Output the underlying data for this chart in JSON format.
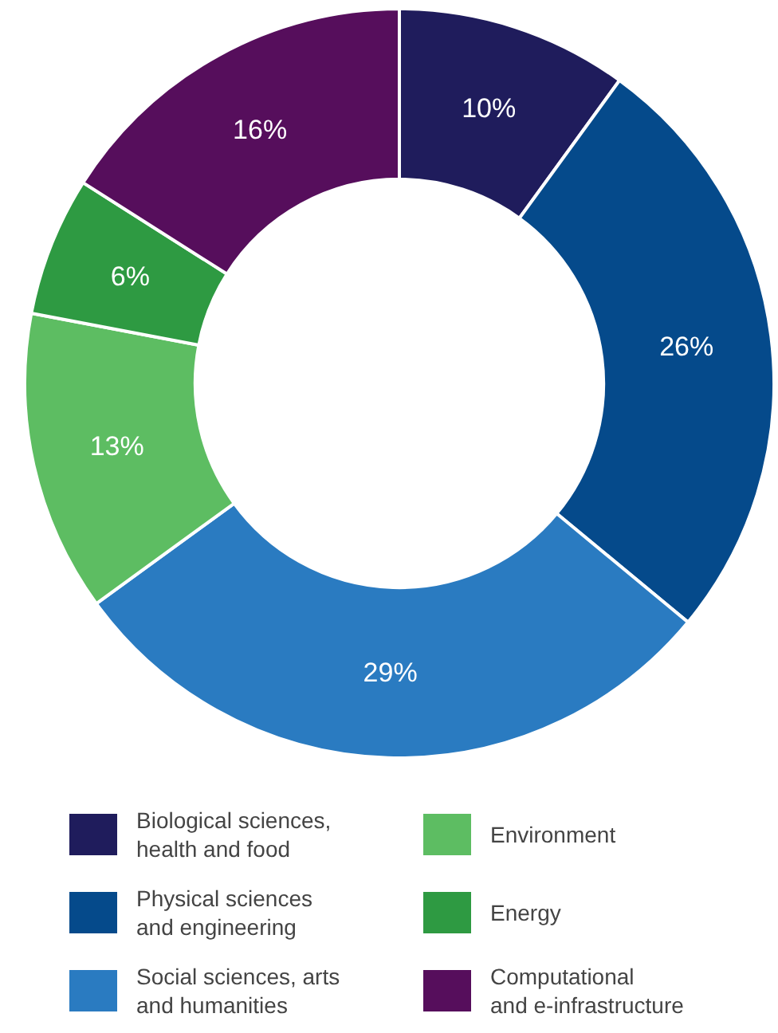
{
  "chart_data": {
    "type": "donut",
    "categories": [
      "Biological sciences,\nhealth and food",
      "Physical sciences\nand engineering",
      "Social sciences, arts\nand humanities",
      "Environment",
      "Energy",
      "Computational\nand e-infrastructure"
    ],
    "values": [
      10,
      26,
      29,
      13,
      6,
      16
    ],
    "colors": [
      "#1f1c5c",
      "#054a8b",
      "#2a7bc1",
      "#5dbd62",
      "#2e9a42",
      "#560e5c"
    ],
    "value_labels": [
      "10%",
      "26%",
      "29%",
      "13%",
      "6%",
      "16%"
    ],
    "legend": "bottom"
  }
}
